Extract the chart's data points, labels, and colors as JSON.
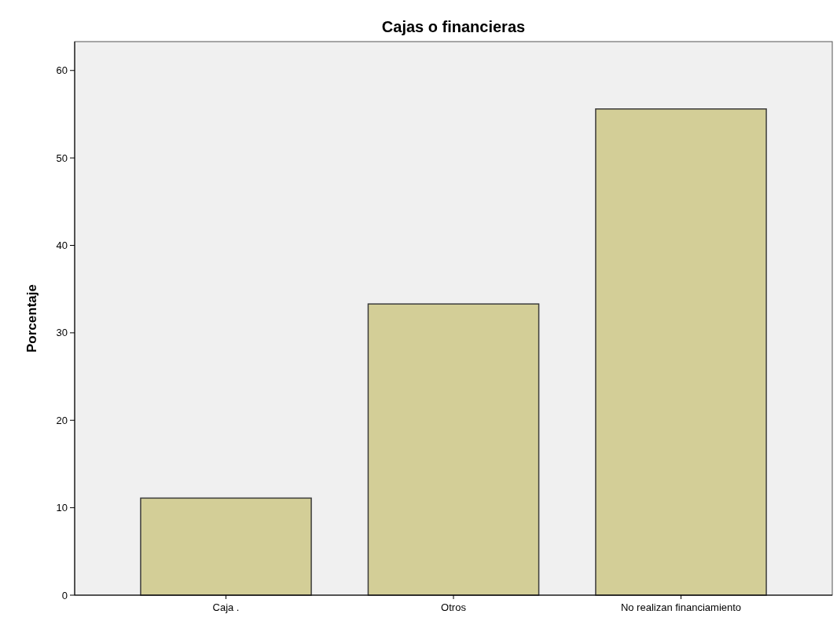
{
  "chart_data": {
    "type": "bar",
    "title": "Cajas o financieras",
    "ylabel": "Porcentaje",
    "categories": [
      "Caja .",
      "Otros",
      "No realizan financiamiento"
    ],
    "values": [
      11.1,
      33.3,
      55.6
    ],
    "color": "#d3ce97",
    "ylim": [
      0,
      63.3
    ],
    "yticks": [
      0,
      10,
      20,
      30,
      40,
      50,
      60
    ],
    "grid": false
  }
}
